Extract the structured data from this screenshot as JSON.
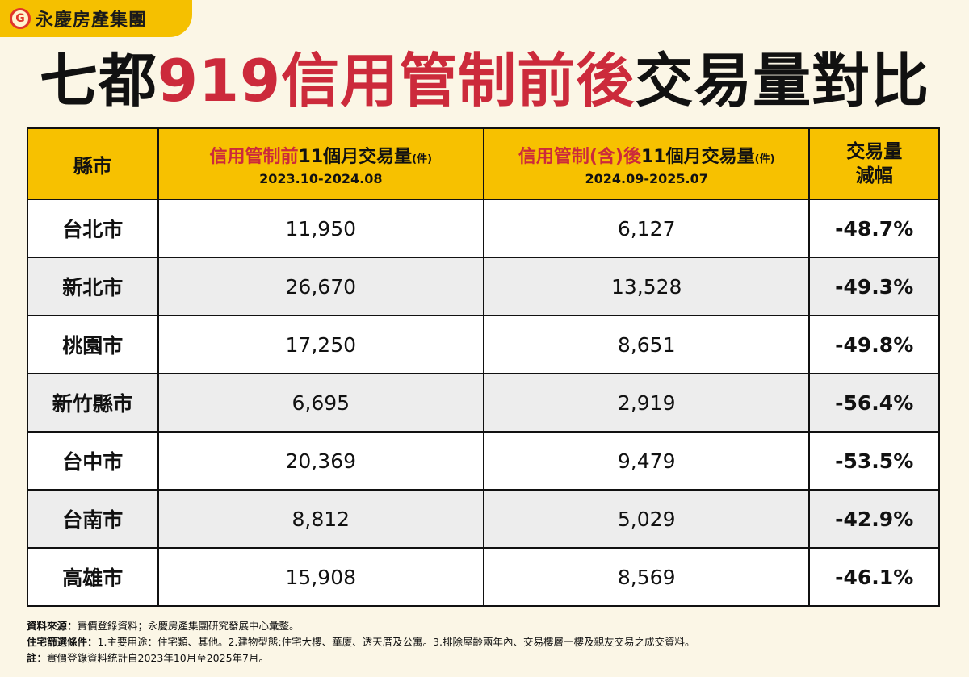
{
  "brand": {
    "name": "永慶房產集團",
    "logo_icon": "circle-g-logo"
  },
  "title": {
    "part1": "七都",
    "part2": "919信用管制前後",
    "part3": "交易量對比"
  },
  "chart_data": {
    "type": "table",
    "headers": {
      "city": "縣市",
      "before_main": "信用管制前",
      "before_rest": "11個月交易量",
      "before_unit": "(件)",
      "before_period": "2023.10-2024.08",
      "after_main": "信用管制(含)後",
      "after_rest": "11個月交易量",
      "after_unit": "(件)",
      "after_period": "2024.09-2025.07",
      "change_line1": "交易量",
      "change_line2": "減幅"
    },
    "rows": [
      {
        "city": "台北市",
        "before": "11,950",
        "after": "6,127",
        "change": "-48.7%"
      },
      {
        "city": "新北市",
        "before": "26,670",
        "after": "13,528",
        "change": "-49.3%"
      },
      {
        "city": "桃園市",
        "before": "17,250",
        "after": "8,651",
        "change": "-49.8%"
      },
      {
        "city": "新竹縣市",
        "before": "6,695",
        "after": "2,919",
        "change": "-56.4%"
      },
      {
        "city": "台中市",
        "before": "20,369",
        "after": "9,479",
        "change": "-53.5%"
      },
      {
        "city": "台南市",
        "before": "8,812",
        "after": "5,029",
        "change": "-42.9%"
      },
      {
        "city": "高雄市",
        "before": "15,908",
        "after": "8,569",
        "change": "-46.1%"
      }
    ]
  },
  "notes": [
    {
      "label": "資料來源：",
      "text": "實價登錄資料；永慶房產集團研究發展中心彙整。"
    },
    {
      "label": "住宅篩選條件：",
      "text": "1.主要用途：住宅類、其他。2.建物型態:住宅大樓、華廈、透天厝及公寓。3.排除屋齡兩年內、交易樓層一樓及親友交易之成交資料。"
    },
    {
      "label": "註：",
      "text": "實價登錄資料統計自2023年10月至2025年7月。"
    }
  ],
  "colors": {
    "accent_yellow": "#f7c100",
    "title_red": "#cc2a3b",
    "row_alt": "#ededed",
    "background": "#fbf6e6"
  }
}
